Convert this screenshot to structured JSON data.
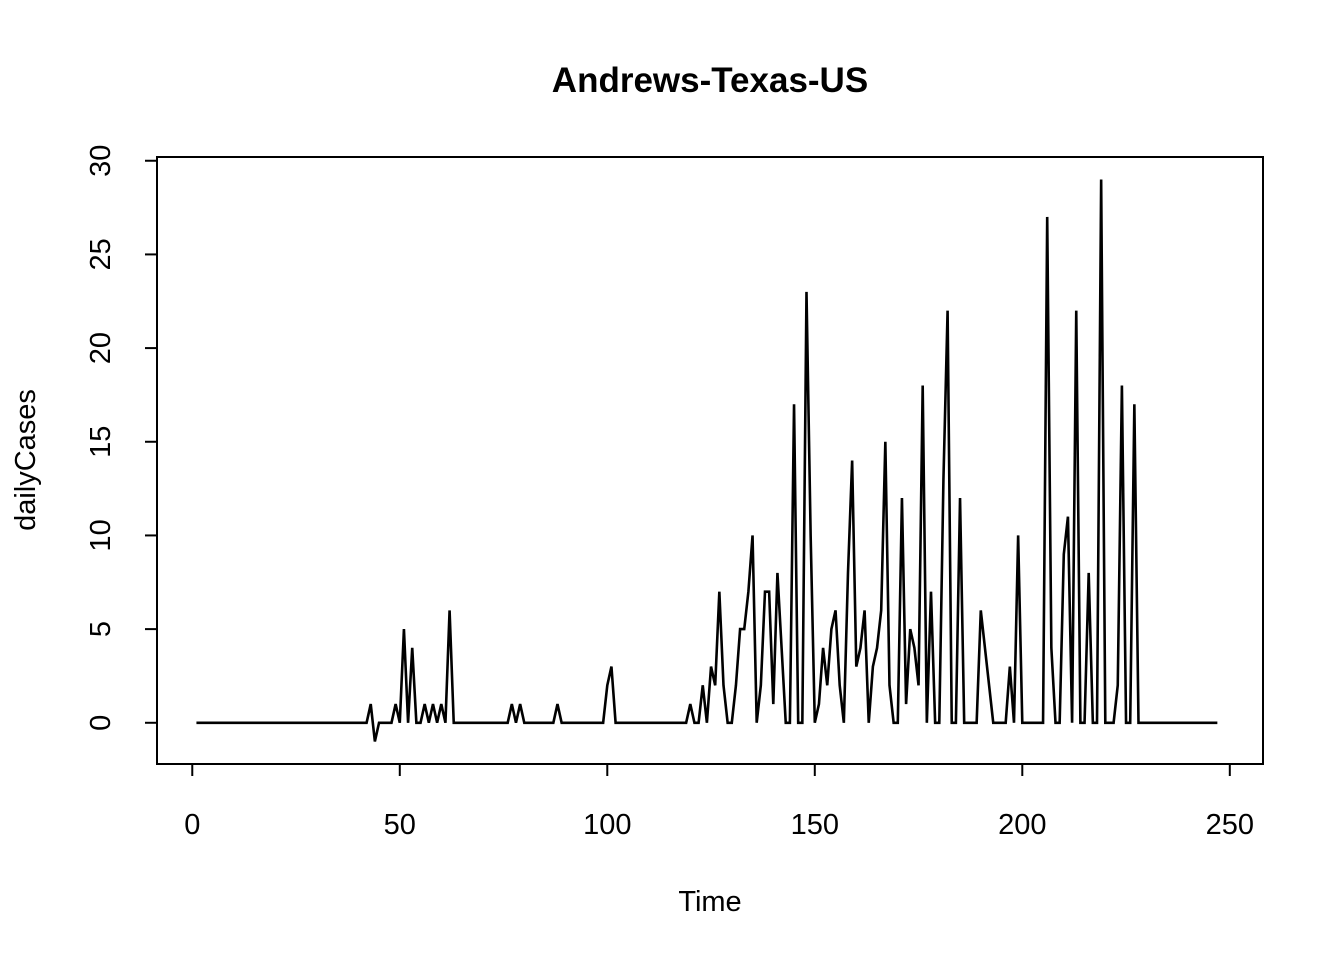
{
  "chart_data": {
    "type": "line",
    "title": "Andrews-Texas-US",
    "xlabel": "Time",
    "ylabel": "dailyCases",
    "xlim": [
      -8.5,
      258
    ],
    "ylim": [
      -2.2,
      30.2
    ],
    "xticks": [
      0,
      50,
      100,
      150,
      200,
      250
    ],
    "yticks": [
      0,
      5,
      10,
      15,
      20,
      25,
      30
    ],
    "grid": false,
    "legend": "none",
    "line_color": "#000000",
    "series": [
      {
        "x_start": 1,
        "values": [
          0,
          0,
          0,
          0,
          0,
          0,
          0,
          0,
          0,
          0,
          0,
          0,
          0,
          0,
          0,
          0,
          0,
          0,
          0,
          0,
          0,
          0,
          0,
          0,
          0,
          0,
          0,
          0,
          0,
          0,
          0,
          0,
          0,
          0,
          0,
          0,
          0,
          0,
          0,
          0,
          0,
          0,
          1,
          -1,
          0,
          0,
          0,
          0,
          1,
          0,
          5,
          0,
          4,
          0,
          0,
          1,
          0,
          1,
          0,
          1,
          0,
          6,
          0,
          0,
          0,
          0,
          0,
          0,
          0,
          0,
          0,
          0,
          0,
          0,
          0,
          0,
          1,
          0,
          1,
          0,
          0,
          0,
          0,
          0,
          0,
          0,
          0,
          1,
          0,
          0,
          0,
          0,
          0,
          0,
          0,
          0,
          0,
          0,
          0,
          2,
          3,
          0,
          0,
          0,
          0,
          0,
          0,
          0,
          0,
          0,
          0,
          0,
          0,
          0,
          0,
          0,
          0,
          0,
          0,
          1,
          0,
          0,
          2,
          0,
          3,
          2,
          7,
          2,
          0,
          0,
          2,
          5,
          5,
          7,
          10,
          0,
          2,
          7,
          7,
          1,
          8,
          4,
          0,
          0,
          17,
          0,
          0,
          23,
          10,
          0,
          1,
          4,
          2,
          5,
          6,
          2,
          0,
          8,
          14,
          3,
          4,
          6,
          0,
          3,
          4,
          6,
          15,
          2,
          0,
          0,
          12,
          1,
          5,
          4,
          2,
          18,
          0,
          7,
          0,
          0,
          13,
          22,
          0,
          0,
          12,
          0,
          0,
          0,
          0,
          6,
          4,
          2,
          0,
          0,
          0,
          0,
          3,
          0,
          10,
          0,
          0,
          0,
          0,
          0,
          0,
          27,
          4,
          0,
          0,
          9,
          11,
          0,
          22,
          0,
          0,
          8,
          0,
          0,
          29,
          0,
          0,
          0,
          2,
          18,
          0,
          0,
          17,
          0,
          0,
          0,
          0,
          0,
          0,
          0,
          0,
          0,
          0,
          0,
          0,
          0,
          0,
          0,
          0,
          0,
          0,
          0,
          0
        ]
      }
    ]
  }
}
